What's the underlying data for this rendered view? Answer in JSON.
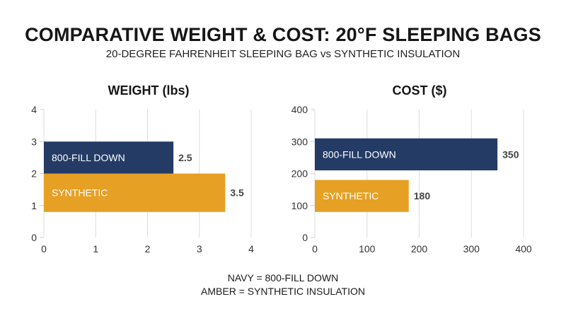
{
  "header": {
    "title": "COMPARATIVE WEIGHT & COST: 20°F SLEEPING BAGS",
    "subtitle": "20-DEGREE FAHRENHEIT SLEEPING BAG vs SYNTHETIC INSULATION"
  },
  "legend": {
    "line1": "NAVY = 800-FILL DOWN",
    "line2": "AMBER = SYNTHETIC INSULATION"
  },
  "colors": {
    "navy": "#243b66",
    "amber": "#e6a024",
    "grid": "#dcdcdc",
    "text": "#1a1a1a"
  },
  "chart_data": [
    {
      "type": "bar",
      "orientation": "horizontal",
      "title": "WEIGHT (lbs)",
      "categories": [
        "800-FILL DOWN",
        "SYNTHETIC"
      ],
      "values": [
        2.5,
        3.5
      ],
      "value_labels": [
        "2.5",
        "3.5"
      ],
      "colors": [
        "#243b66",
        "#e6a024"
      ],
      "xlim": [
        0,
        4
      ],
      "x_ticks": [
        "0",
        "1",
        "2",
        "3",
        "4"
      ],
      "ylim": [
        0,
        4
      ],
      "y_ticks": [
        "0",
        "1",
        "2",
        "3",
        "4"
      ],
      "bar_y_ranges": [
        [
          2,
          3
        ],
        [
          0.8,
          2
        ]
      ],
      "grid": true
    },
    {
      "type": "bar",
      "orientation": "horizontal",
      "title": "COST ($)",
      "categories": [
        "800-FILL DOWN",
        "SYNTHETIC"
      ],
      "values": [
        350,
        180
      ],
      "value_labels": [
        "350",
        "180"
      ],
      "colors": [
        "#243b66",
        "#e6a024"
      ],
      "xlim": [
        0,
        400
      ],
      "x_ticks": [
        "0",
        "100",
        "200",
        "300",
        "400"
      ],
      "ylim": [
        0,
        400
      ],
      "y_ticks": [
        "0",
        "100",
        "200",
        "300",
        "400"
      ],
      "bar_y_ranges": [
        [
          210,
          310
        ],
        [
          80,
          180
        ]
      ],
      "grid": true
    }
  ]
}
